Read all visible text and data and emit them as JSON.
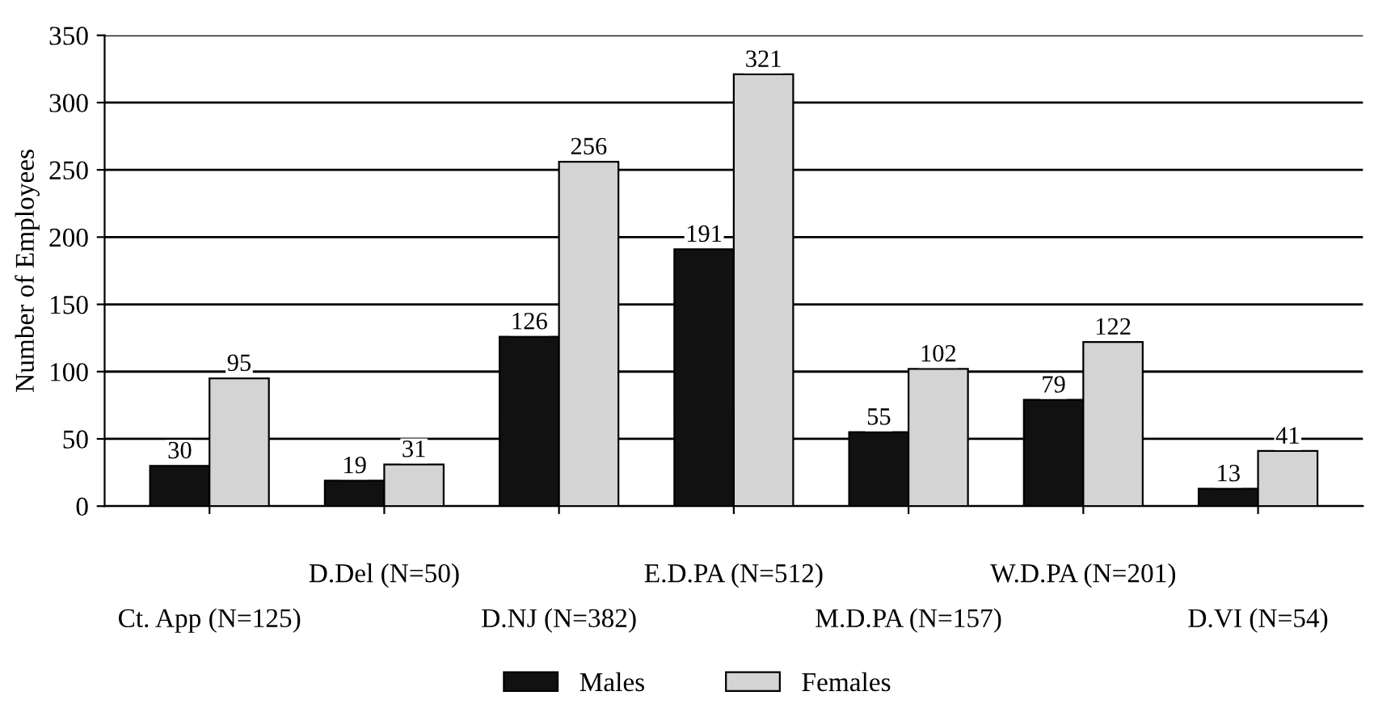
{
  "chart_data": {
    "type": "bar",
    "ylabel": "Number of Employees",
    "categories": [
      "Ct. App (N=125)",
      "D.Del (N=50)",
      "D.NJ (N=382)",
      "E.D.PA (N=512)",
      "M.D.PA (N=157)",
      "W.D.PA (N=201)",
      "D.VI (N=54)"
    ],
    "series": [
      {
        "name": "Males",
        "color": "#111111",
        "values": [
          30,
          19,
          126,
          191,
          55,
          79,
          13
        ]
      },
      {
        "name": "Females",
        "color": "#d4d4d4",
        "values": [
          95,
          31,
          256,
          321,
          102,
          122,
          41
        ]
      }
    ],
    "ylim": [
      0,
      350
    ],
    "yticks": [
      0,
      50,
      100,
      150,
      200,
      250,
      300,
      350
    ],
    "grid": "y",
    "legend": "bottom",
    "data_labels": true
  }
}
